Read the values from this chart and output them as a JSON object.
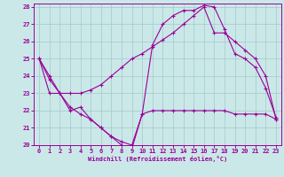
{
  "xlabel": "Windchill (Refroidissement éolien,°C)",
  "xlim": [
    -0.5,
    23.5
  ],
  "ylim": [
    20,
    28.2
  ],
  "yticks": [
    20,
    21,
    22,
    23,
    24,
    25,
    26,
    27,
    28
  ],
  "xticks": [
    0,
    1,
    2,
    3,
    4,
    5,
    6,
    7,
    8,
    9,
    10,
    11,
    12,
    13,
    14,
    15,
    16,
    17,
    18,
    19,
    20,
    21,
    22,
    23
  ],
  "bg_color": "#cbe8e8",
  "grid_color": "#a8cece",
  "line_color": "#990099",
  "line1_x": [
    0,
    1,
    2,
    3,
    4,
    5,
    6,
    7,
    8,
    9,
    10,
    11,
    12,
    13,
    14,
    15,
    16,
    17,
    18,
    19,
    20,
    21,
    22,
    23
  ],
  "line1_y": [
    25.0,
    24.0,
    23.0,
    22.0,
    22.2,
    21.5,
    21.0,
    20.5,
    20.0,
    19.8,
    21.8,
    22.0,
    22.0,
    22.0,
    22.0,
    22.0,
    22.0,
    22.0,
    22.0,
    21.8,
    21.8,
    21.8,
    21.8,
    21.5
  ],
  "line2_x": [
    0,
    1,
    2,
    3,
    4,
    5,
    6,
    7,
    8,
    9,
    10,
    11,
    12,
    13,
    14,
    15,
    16,
    17,
    18,
    19,
    20,
    21,
    22,
    23
  ],
  "line2_y": [
    25.0,
    23.0,
    23.0,
    23.0,
    23.0,
    23.2,
    23.5,
    24.0,
    24.5,
    25.0,
    25.3,
    25.7,
    26.1,
    26.5,
    27.0,
    27.5,
    28.0,
    26.5,
    26.5,
    26.0,
    25.5,
    25.0,
    24.0,
    21.5
  ],
  "line3_x": [
    0,
    1,
    2,
    3,
    4,
    5,
    6,
    7,
    8,
    9,
    10,
    11,
    12,
    13,
    14,
    15,
    16,
    17,
    18,
    19,
    20,
    21,
    22,
    23
  ],
  "line3_y": [
    25.0,
    23.8,
    23.0,
    22.2,
    21.8,
    21.5,
    21.0,
    20.5,
    20.2,
    20.0,
    21.8,
    25.8,
    27.0,
    27.5,
    27.8,
    27.8,
    28.1,
    28.0,
    26.7,
    25.3,
    25.0,
    24.5,
    23.3,
    21.6
  ]
}
